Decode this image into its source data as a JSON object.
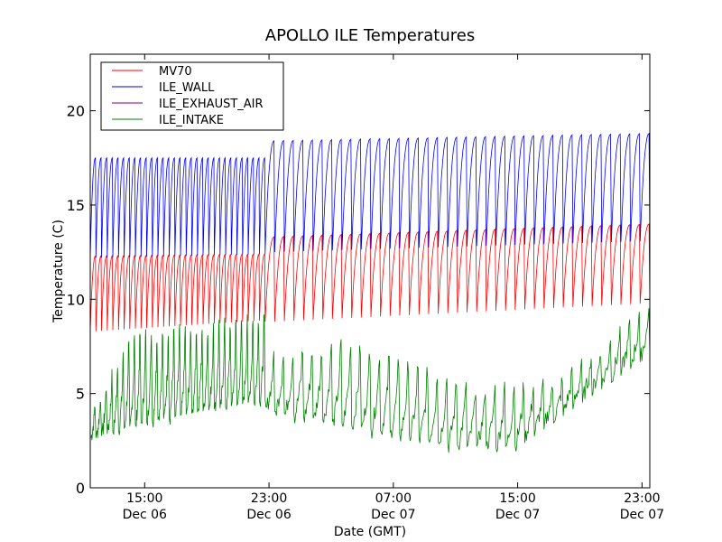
{
  "chart_data": {
    "type": "line",
    "title": "APOLLO ILE Temperatures",
    "xlabel": "Date (GMT)",
    "ylabel": "Temperature (C)",
    "x_range": [
      "2012-12-06T11:30",
      "2012-12-07T23:30"
    ],
    "ylim": [
      0,
      23
    ],
    "y_ticks": [
      0,
      5,
      10,
      15,
      20
    ],
    "x_ticks": [
      {
        "at": "2012-12-06T15:00",
        "time": "15:00",
        "date": "Dec 06"
      },
      {
        "at": "2012-12-06T23:00",
        "time": "23:00",
        "date": "Dec 06"
      },
      {
        "at": "2012-12-07T07:00",
        "time": "07:00",
        "date": "Dec 07"
      },
      {
        "at": "2012-12-07T15:00",
        "time": "15:00",
        "date": "Dec 07"
      },
      {
        "at": "2012-12-07T23:00",
        "time": "23:00",
        "date": "Dec 07"
      }
    ],
    "grid": false,
    "legend": "top-left",
    "series": [
      {
        "name": "MV70",
        "color": "#ff0000",
        "shape": "sawtooth",
        "segments": [
          {
            "start": "2012-12-06T11:30",
            "end": "2012-12-06T22:45",
            "cycles": 31,
            "low": [
              8.3,
              8.9
            ],
            "high": [
              12.3,
              12.4
            ]
          },
          {
            "start": "2012-12-06T22:45",
            "end": "2012-12-07T23:30",
            "cycles": 40,
            "low": [
              8.8,
              9.8
            ],
            "high": [
              13.3,
              14.0
            ]
          }
        ]
      },
      {
        "name": "ILE_WALL",
        "color": "#0000ff",
        "shape": "sawtooth",
        "segments": [
          {
            "start": "2012-12-06T11:30",
            "end": "2012-12-06T22:45",
            "cycles": 31,
            "low": [
              12.2,
              12.4
            ],
            "high": [
              17.5,
              17.5
            ]
          },
          {
            "start": "2012-12-06T22:45",
            "end": "2012-12-07T23:30",
            "cycles": 40,
            "low": [
              12.5,
              13.1
            ],
            "high": [
              18.4,
              18.8
            ]
          }
        ]
      },
      {
        "name": "ILE_EXHAUST_AIR",
        "color": "#800080",
        "shape": "none",
        "segments": []
      },
      {
        "name": "ILE_INTAKE",
        "color": "#008000",
        "shape": "drops",
        "segments": [
          {
            "start": "2012-12-06T11:30",
            "end": "2012-12-06T22:45",
            "cycles": 31,
            "base": [
              [
                0,
                4.2
              ],
              [
                0.25,
                8.0
              ],
              [
                1,
                8.9
              ]
            ],
            "low": [
              [
                0,
                2.6
              ],
              [
                0.25,
                3.4
              ],
              [
                1,
                4.7
              ]
            ]
          },
          {
            "start": "2012-12-06T22:45",
            "end": "2012-12-07T23:30",
            "cycles": 40,
            "base": [
              [
                0,
                6.8
              ],
              [
                0.2,
                7.6
              ],
              [
                0.55,
                5.2
              ],
              [
                0.75,
                5.4
              ],
              [
                1,
                9.6
              ]
            ],
            "low": [
              [
                0,
                4.1
              ],
              [
                0.3,
                3.0
              ],
              [
                0.5,
                2.2
              ],
              [
                0.65,
                2.2
              ],
              [
                1,
                7.2
              ]
            ]
          }
        ]
      }
    ]
  }
}
